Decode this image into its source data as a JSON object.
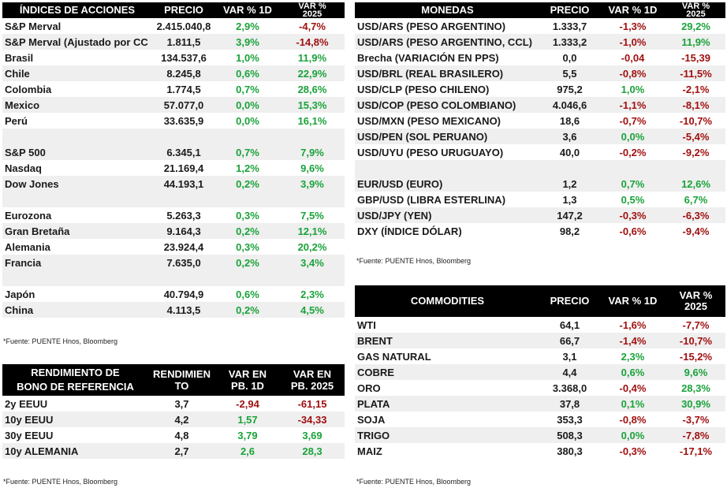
{
  "indices": {
    "headers": [
      "ÍNDICES DE ACCIONES",
      "PRECIO",
      "VAR % 1D",
      "VAR %\n2025"
    ],
    "rows": [
      {
        "name": "S&P Merval",
        "price": "2.415.040,8",
        "d1": "2,9%",
        "d1s": "pos",
        "ytd": "-4,7%",
        "ytds": "neg"
      },
      {
        "name": "S&P Merval (Ajustado por CC",
        "price": "1.811,5",
        "d1": "3,9%",
        "d1s": "pos",
        "ytd": "-14,8%",
        "ytds": "neg"
      },
      {
        "name": "Brasil",
        "price": "134.537,6",
        "d1": "1,0%",
        "d1s": "pos",
        "ytd": "11,9%",
        "ytds": "pos"
      },
      {
        "name": "Chile",
        "price": "8.245,8",
        "d1": "0,6%",
        "d1s": "pos",
        "ytd": "22,9%",
        "ytds": "pos"
      },
      {
        "name": "Colombia",
        "price": "1.774,5",
        "d1": "0,7%",
        "d1s": "pos",
        "ytd": "28,6%",
        "ytds": "pos"
      },
      {
        "name": "Mexico",
        "price": "57.077,0",
        "d1": "0,0%",
        "d1s": "pos",
        "ytd": "15,3%",
        "ytds": "pos"
      },
      {
        "name": "Perú",
        "price": "33.635,9",
        "d1": "0,0%",
        "d1s": "pos",
        "ytd": "16,1%",
        "ytds": "pos"
      },
      {
        "gap": true
      },
      {
        "name": "S&P 500",
        "price": "6.345,1",
        "d1": "0,7%",
        "d1s": "pos",
        "ytd": "7,9%",
        "ytds": "pos"
      },
      {
        "name": "Nasdaq",
        "price": "21.169,4",
        "d1": "1,2%",
        "d1s": "pos",
        "ytd": "9,6%",
        "ytds": "pos"
      },
      {
        "name": "Dow Jones",
        "price": "44.193,1",
        "d1": "0,2%",
        "d1s": "pos",
        "ytd": "3,9%",
        "ytds": "pos"
      },
      {
        "gap": true
      },
      {
        "name": "Eurozona",
        "price": "5.263,3",
        "d1": "0,3%",
        "d1s": "pos",
        "ytd": "7,5%",
        "ytds": "pos"
      },
      {
        "name": "Gran Bretaña",
        "price": "9.164,3",
        "d1": "0,2%",
        "d1s": "pos",
        "ytd": "12,1%",
        "ytds": "pos"
      },
      {
        "name": "Alemania",
        "price": "23.924,4",
        "d1": "0,3%",
        "d1s": "pos",
        "ytd": "20,2%",
        "ytds": "pos"
      },
      {
        "name": "Francia",
        "price": "7.635,0",
        "d1": "0,2%",
        "d1s": "pos",
        "ytd": "3,4%",
        "ytds": "pos"
      },
      {
        "gap": true
      },
      {
        "name": "Japón",
        "price": "40.794,9",
        "d1": "0,6%",
        "d1s": "pos",
        "ytd": "2,3%",
        "ytds": "pos"
      },
      {
        "name": "China",
        "price": "4.113,5",
        "d1": "0,2%",
        "d1s": "pos",
        "ytd": "4,5%",
        "ytds": "pos"
      }
    ],
    "source": "*Fuente: PUENTE Hnos, Bloomberg"
  },
  "bonds": {
    "headers": [
      "RENDIMIENTO DE\nBONO DE REFERENCIA",
      "RENDIMIEN\nTO",
      "VAR EN\nPB. 1D",
      "VAR EN\nPB. 2025"
    ],
    "rows": [
      {
        "name": "2y EEUU",
        "price": "3,7",
        "d1": "-2,94",
        "d1s": "neg",
        "ytd": "-61,15",
        "ytds": "neg"
      },
      {
        "name": "10y EEUU",
        "price": "4,2",
        "d1": "1,57",
        "d1s": "pos",
        "ytd": "-34,33",
        "ytds": "neg"
      },
      {
        "name": "30y EEUU",
        "price": "4,8",
        "d1": "3,79",
        "d1s": "pos",
        "ytd": "3,69",
        "ytds": "pos"
      },
      {
        "name": "10y ALEMANIA",
        "price": "2,7",
        "d1": "2,6",
        "d1s": "pos",
        "ytd": "28,3",
        "ytds": "pos"
      }
    ],
    "source": "*Fuente: PUENTE Hnos, Bloomberg"
  },
  "currencies": {
    "headers": [
      "MONEDAS",
      "PRECIO",
      "VAR % 1D",
      "VAR %\n2025"
    ],
    "rows": [
      {
        "name": "USD/ARS (PESO ARGENTINO)",
        "price": "1.333,7",
        "d1": "-1,3%",
        "d1s": "neg",
        "ytd": "29,2%",
        "ytds": "pos"
      },
      {
        "name": "USD/ARS (PESO ARGENTINO, CCL)",
        "price": "1.333,2",
        "d1": "-1,0%",
        "d1s": "neg",
        "ytd": "11,9%",
        "ytds": "pos"
      },
      {
        "name": "Brecha (VARIACIÓN EN PPS)",
        "price": "0,0",
        "d1": "-0,04",
        "d1s": "neg",
        "ytd": "-15,39",
        "ytds": "neg"
      },
      {
        "name": "USD/BRL (REAL BRASILERO)",
        "price": "5,5",
        "d1": "-0,8%",
        "d1s": "neg",
        "ytd": "-11,5%",
        "ytds": "neg"
      },
      {
        "name": "USD/CLP (PESO CHILENO)",
        "price": "975,2",
        "d1": "1,0%",
        "d1s": "pos",
        "ytd": "-2,1%",
        "ytds": "neg"
      },
      {
        "name": "USD/COP (PESO COLOMBIANO)",
        "price": "4.046,6",
        "d1": "-1,1%",
        "d1s": "neg",
        "ytd": "-8,1%",
        "ytds": "neg"
      },
      {
        "name": "USD/MXN (PESO MEXICANO)",
        "price": "18,6",
        "d1": "-0,7%",
        "d1s": "neg",
        "ytd": "-10,7%",
        "ytds": "neg"
      },
      {
        "name": "USD/PEN (SOL PERUANO)",
        "price": "3,6",
        "d1": "0,0%",
        "d1s": "pos",
        "ytd": "-5,4%",
        "ytds": "neg"
      },
      {
        "name": "USD/UYU (PESO URUGUAYO)",
        "price": "40,0",
        "d1": "-0,2%",
        "d1s": "neg",
        "ytd": "-9,2%",
        "ytds": "neg"
      },
      {
        "gap": true
      },
      {
        "name": "EUR/USD (EURO)",
        "price": "1,2",
        "d1": "0,7%",
        "d1s": "pos",
        "ytd": "12,6%",
        "ytds": "pos"
      },
      {
        "name": "GBP/USD (LIBRA ESTERLINA)",
        "price": "1,3",
        "d1": "0,5%",
        "d1s": "pos",
        "ytd": "6,7%",
        "ytds": "pos"
      },
      {
        "name": "USD/JPY (YEN)",
        "price": "147,2",
        "d1": "-0,3%",
        "d1s": "neg",
        "ytd": "-6,3%",
        "ytds": "neg"
      },
      {
        "name": "DXY (ÍNDICE DÓLAR)",
        "price": "98,2",
        "d1": "-0,6%",
        "d1s": "neg",
        "ytd": "-9,4%",
        "ytds": "neg"
      }
    ],
    "source": "*Fuente: PUENTE Hnos, Bloomberg"
  },
  "commodities": {
    "headers": [
      "COMMODITIES",
      "PRECIO",
      "VAR % 1D",
      "VAR %\n2025"
    ],
    "rows": [
      {
        "name": "WTI",
        "price": "64,1",
        "d1": "-1,6%",
        "d1s": "neg",
        "ytd": "-7,7%",
        "ytds": "neg"
      },
      {
        "name": "BRENT",
        "price": "66,7",
        "d1": "-1,4%",
        "d1s": "neg",
        "ytd": "-10,7%",
        "ytds": "neg"
      },
      {
        "name": "GAS NATURAL",
        "price": "3,1",
        "d1": "2,3%",
        "d1s": "pos",
        "ytd": "-15,2%",
        "ytds": "neg"
      },
      {
        "name": "COBRE",
        "price": "4,4",
        "d1": "0,6%",
        "d1s": "pos",
        "ytd": "9,6%",
        "ytds": "pos"
      },
      {
        "name": "ORO",
        "price": "3.368,0",
        "d1": "-0,4%",
        "d1s": "neg",
        "ytd": "28,3%",
        "ytds": "pos"
      },
      {
        "name": "PLATA",
        "price": "37,8",
        "d1": "0,1%",
        "d1s": "pos",
        "ytd": "30,9%",
        "ytds": "pos"
      },
      {
        "name": "SOJA",
        "price": "353,3",
        "d1": "-0,8%",
        "d1s": "neg",
        "ytd": "-3,7%",
        "ytds": "neg"
      },
      {
        "name": "TRIGO",
        "price": "508,3",
        "d1": "0,0%",
        "d1s": "pos",
        "ytd": "-7,8%",
        "ytds": "neg"
      },
      {
        "name": "MAIZ",
        "price": "380,3",
        "d1": "-0,3%",
        "d1s": "neg",
        "ytd": "-17,1%",
        "ytds": "neg"
      }
    ],
    "source": "*Fuente: PUENTE Hnos, Bloomberg"
  }
}
